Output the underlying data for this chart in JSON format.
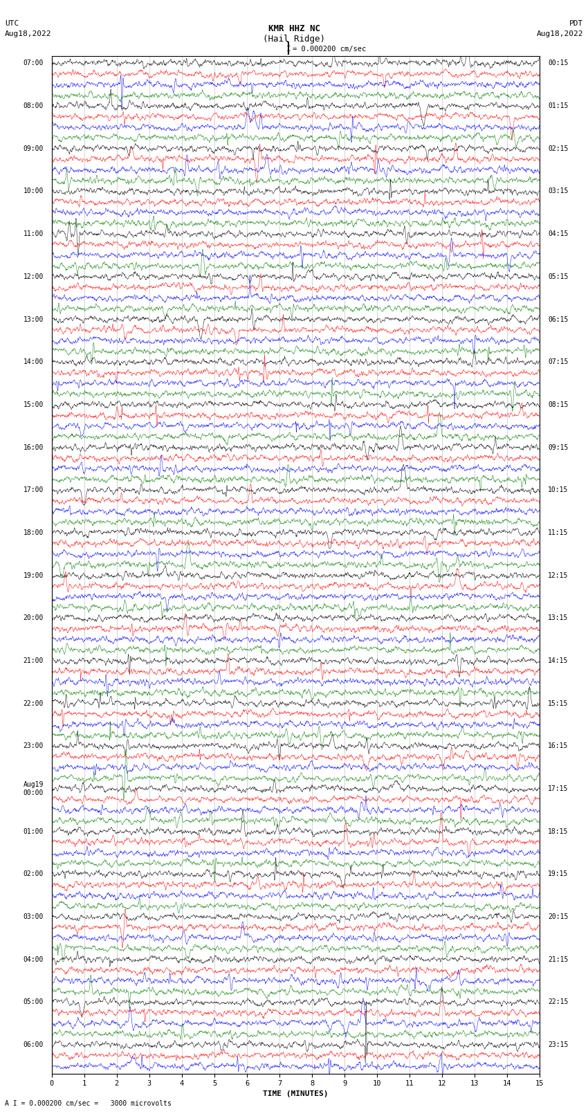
{
  "title_line1": "KMR HHZ NC",
  "title_line2": "(Hail Ridge)",
  "scale_label": "I = 0.000200 cm/sec",
  "footer_label": "A I = 0.000200 cm/sec =   3000 microvolts",
  "xlabel": "TIME (MINUTES)",
  "bg_color": "#ffffff",
  "trace_colors": [
    "black",
    "red",
    "blue",
    "green"
  ],
  "left_times_utc": [
    "07:00",
    "",
    "",
    "",
    "08:00",
    "",
    "",
    "",
    "09:00",
    "",
    "",
    "",
    "10:00",
    "",
    "",
    "",
    "11:00",
    "",
    "",
    "",
    "12:00",
    "",
    "",
    "",
    "13:00",
    "",
    "",
    "",
    "14:00",
    "",
    "",
    "",
    "15:00",
    "",
    "",
    "",
    "16:00",
    "",
    "",
    "",
    "17:00",
    "",
    "",
    "",
    "18:00",
    "",
    "",
    "",
    "19:00",
    "",
    "",
    "",
    "20:00",
    "",
    "",
    "",
    "21:00",
    "",
    "",
    "",
    "22:00",
    "",
    "",
    "",
    "23:00",
    "",
    "",
    "",
    "Aug19\n00:00",
    "",
    "",
    "",
    "01:00",
    "",
    "",
    "",
    "02:00",
    "",
    "",
    "",
    "03:00",
    "",
    "",
    "",
    "04:00",
    "",
    "",
    "",
    "05:00",
    "",
    "",
    "",
    "06:00",
    "",
    ""
  ],
  "right_times_pdt": [
    "00:15",
    "",
    "",
    "",
    "01:15",
    "",
    "",
    "",
    "02:15",
    "",
    "",
    "",
    "03:15",
    "",
    "",
    "",
    "04:15",
    "",
    "",
    "",
    "05:15",
    "",
    "",
    "",
    "06:15",
    "",
    "",
    "",
    "07:15",
    "",
    "",
    "",
    "08:15",
    "",
    "",
    "",
    "09:15",
    "",
    "",
    "",
    "10:15",
    "",
    "",
    "",
    "11:15",
    "",
    "",
    "",
    "12:15",
    "",
    "",
    "",
    "13:15",
    "",
    "",
    "",
    "14:15",
    "",
    "",
    "",
    "15:15",
    "",
    "",
    "",
    "16:15",
    "",
    "",
    "",
    "17:15",
    "",
    "",
    "",
    "18:15",
    "",
    "",
    "",
    "19:15",
    "",
    "",
    "",
    "20:15",
    "",
    "",
    "",
    "21:15",
    "",
    "",
    "",
    "22:15",
    "",
    "",
    "",
    "23:15",
    "",
    ""
  ],
  "n_rows": 95,
  "x_ticks": [
    0,
    1,
    2,
    3,
    4,
    5,
    6,
    7,
    8,
    9,
    10,
    11,
    12,
    13,
    14,
    15
  ],
  "title_fontsize": 9,
  "label_fontsize": 8,
  "tick_fontsize": 7.5
}
